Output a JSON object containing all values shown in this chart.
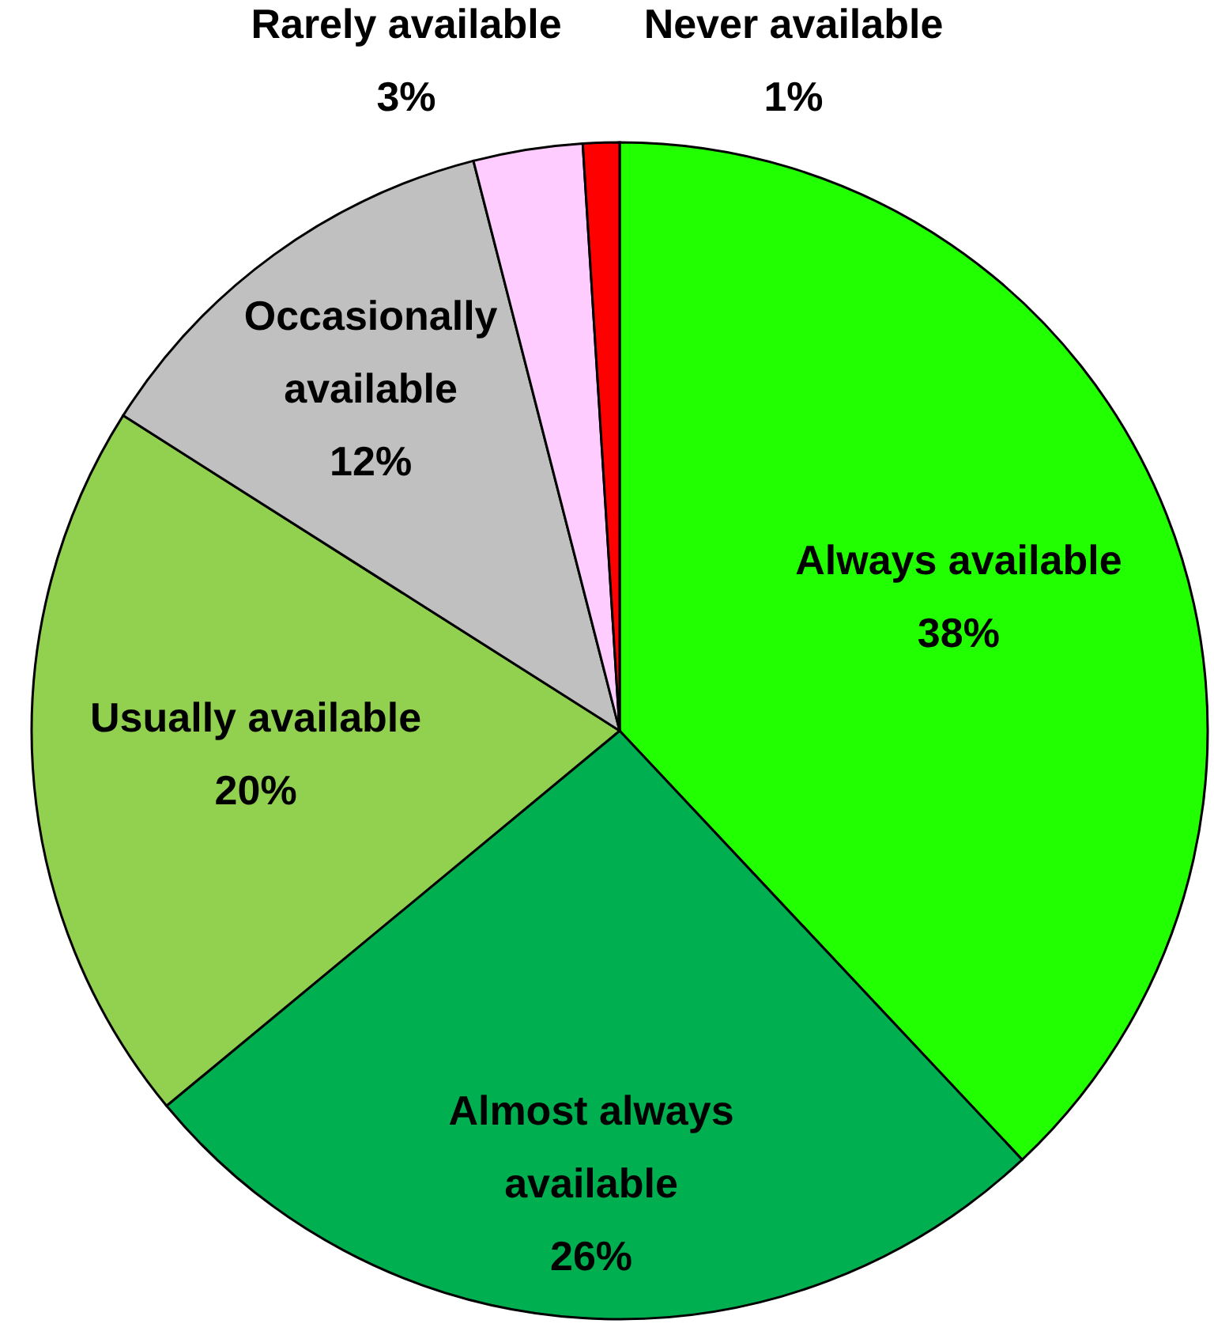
{
  "chart_data": {
    "type": "pie",
    "categories": [
      "Always available",
      "Almost always available",
      "Usually available",
      "Occasionally available",
      "Rarely available",
      "Never available"
    ],
    "values": [
      38,
      26,
      20,
      12,
      3,
      1
    ],
    "colors": [
      "#22ff00",
      "#00b050",
      "#92d050",
      "#c0c0c0",
      "#ffccff",
      "#ff0000"
    ],
    "value_labels": [
      "38%",
      "26%",
      "20%",
      "12%",
      "3%",
      "1%"
    ]
  }
}
